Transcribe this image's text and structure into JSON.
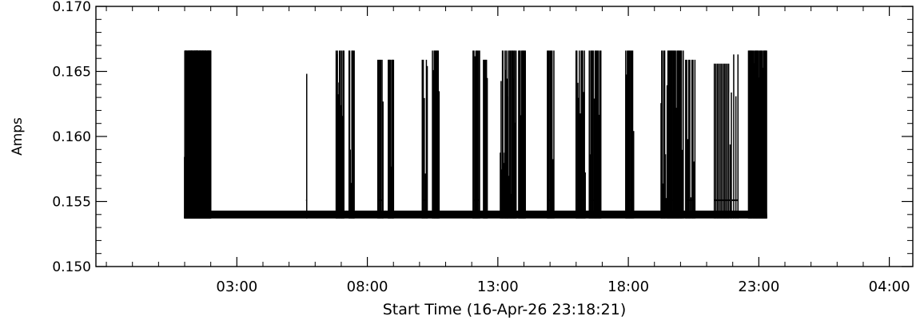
{
  "chart_data": {
    "type": "line",
    "title": "",
    "xlabel": "Start Time (16-Apr-26 23:18:21)",
    "ylabel": "Amps",
    "ylim": [
      0.15,
      0.17
    ],
    "yticks": [
      "0.150",
      "0.155",
      "0.160",
      "0.165",
      "0.170"
    ],
    "xlim_hours": [
      -2.4,
      28.9
    ],
    "xticks": [
      {
        "hour": 3,
        "label": "03:00"
      },
      {
        "hour": 8,
        "label": "08:00"
      },
      {
        "hour": 13,
        "label": "13:00"
      },
      {
        "hour": 18,
        "label": "18:00"
      },
      {
        "hour": 23,
        "label": "23:00"
      },
      {
        "hour": 28,
        "label": "04:00"
      }
    ],
    "grid": false,
    "legend": "none",
    "line_color": "#000000",
    "series": [
      {
        "baseline_range": [
          0.1537,
          0.1543
        ],
        "span_hours": [
          1.0,
          23.3
        ],
        "burst_low": 0.1551,
        "burst_high": 0.1666,
        "bursts": [
          {
            "start": 1.0,
            "end": 2.0,
            "count": 120,
            "peak": 0.1666
          },
          {
            "start": 5.65,
            "end": 5.7,
            "count": 1,
            "peak": 0.1666
          },
          {
            "start": 6.8,
            "end": 7.1,
            "count": 12,
            "peak": 0.1666
          },
          {
            "start": 7.3,
            "end": 7.5,
            "count": 10,
            "peak": 0.1666
          },
          {
            "start": 8.4,
            "end": 8.6,
            "count": 6,
            "peak": 0.1659
          },
          {
            "start": 8.8,
            "end": 9.0,
            "count": 10,
            "peak": 0.1659
          },
          {
            "start": 10.1,
            "end": 10.3,
            "count": 6,
            "peak": 0.1659
          },
          {
            "start": 10.5,
            "end": 10.75,
            "count": 10,
            "peak": 0.1666
          },
          {
            "start": 12.05,
            "end": 12.3,
            "count": 8,
            "peak": 0.1666
          },
          {
            "start": 12.45,
            "end": 12.6,
            "count": 6,
            "peak": 0.1659
          },
          {
            "start": 13.1,
            "end": 13.7,
            "count": 25,
            "peak": 0.1666
          },
          {
            "start": 13.8,
            "end": 14.05,
            "count": 10,
            "peak": 0.1666
          },
          {
            "start": 14.9,
            "end": 15.15,
            "count": 8,
            "peak": 0.1666
          },
          {
            "start": 16.0,
            "end": 16.35,
            "count": 12,
            "peak": 0.1666
          },
          {
            "start": 16.5,
            "end": 16.95,
            "count": 15,
            "peak": 0.1666
          },
          {
            "start": 17.9,
            "end": 18.2,
            "count": 10,
            "peak": 0.1666
          },
          {
            "start": 19.25,
            "end": 20.1,
            "count": 30,
            "peak": 0.1666
          },
          {
            "start": 20.2,
            "end": 20.55,
            "count": 10,
            "peak": 0.1659
          },
          {
            "start": 21.3,
            "end": 21.9,
            "count": 12,
            "peak": 0.1656
          },
          {
            "start": 21.95,
            "end": 22.2,
            "count": 4,
            "peak": 0.1663
          },
          {
            "start": 22.6,
            "end": 23.3,
            "count": 30,
            "peak": 0.1666
          }
        ]
      }
    ]
  }
}
